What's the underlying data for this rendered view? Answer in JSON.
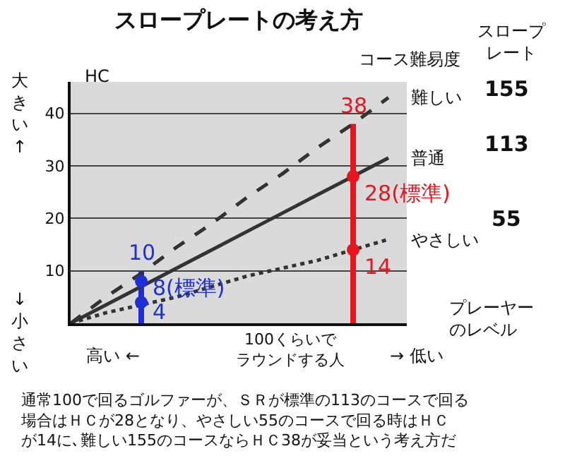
{
  "chart_data": {
    "type": "line",
    "title": "スロープレートの考え方",
    "ylabel": "HC",
    "xlabel": "プレーヤーのレベル",
    "categories": [
      null,
      null,
      null,
      null,
      null,
      null,
      null,
      null,
      null,
      null
    ],
    "ylim": [
      0,
      46
    ],
    "yticks": [
      10,
      20,
      30,
      40
    ],
    "grid": "y",
    "legend": false,
    "marker": "none",
    "series": [
      {
        "name": "難しい",
        "color": "#333333",
        "line_style": "dashed",
        "values": [
          0,
          5,
          9.5,
          14.5,
          19,
          24,
          28.5,
          33.5,
          38,
          43
        ]
      },
      {
        "name": "普通",
        "color": "#333333",
        "line_style": "solid",
        "values": [
          0,
          3.5,
          7,
          10.5,
          14,
          17.5,
          21,
          24.5,
          28,
          31.5
        ]
      },
      {
        "name": "やさしい",
        "color": "#333333",
        "line_style": "dotted",
        "values": [
          0,
          2,
          3.5,
          5,
          7,
          9,
          10.5,
          12,
          14,
          16
        ]
      },
      {
        "type": "bar",
        "color": "#e8141e",
        "values": [
          null,
          null,
          null,
          null,
          null,
          null,
          null,
          null,
          38,
          null
        ],
        "value_labels": [
          null,
          null,
          null,
          null,
          null,
          null,
          null,
          null,
          "38",
          null
        ]
      },
      {
        "type": "bar",
        "color": "#1e2fd6",
        "values": [
          null,
          null,
          10,
          null,
          null,
          null,
          null,
          null,
          null,
          null
        ],
        "value_labels": [
          null,
          null,
          "10",
          null,
          null,
          null,
          null,
          null,
          null,
          null
        ]
      },
      {
        "type": "scatter",
        "marker": "circle",
        "color": "#e8141e",
        "values": [
          null,
          null,
          null,
          null,
          null,
          null,
          null,
          null,
          28,
          null
        ],
        "value_labels": [
          null,
          null,
          null,
          null,
          null,
          null,
          null,
          null,
          "28(標準)",
          null
        ]
      },
      {
        "type": "scatter",
        "marker": "circle",
        "color": "#e8141e",
        "values": [
          null,
          null,
          null,
          null,
          null,
          null,
          null,
          null,
          14,
          null
        ],
        "value_labels": [
          null,
          null,
          null,
          null,
          null,
          null,
          null,
          null,
          "14",
          null
        ]
      },
      {
        "type": "scatter",
        "marker": "circle",
        "color": "#1e2fd6",
        "values": [
          null,
          null,
          8,
          null,
          null,
          null,
          null,
          null,
          null,
          null
        ],
        "value_labels": [
          null,
          null,
          "8(標準)",
          null,
          null,
          null,
          null,
          null,
          null,
          null
        ]
      },
      {
        "type": "scatter",
        "marker": "circle",
        "color": "#1e2fd6",
        "values": [
          null,
          null,
          4,
          null,
          null,
          null,
          null,
          null,
          null,
          null
        ],
        "value_labels": [
          null,
          null,
          "4",
          null,
          null,
          null,
          null,
          null,
          null,
          null
        ]
      }
    ],
    "annotations": [
      "コース難易度",
      "スロープレート",
      "155",
      "113",
      "55",
      "大きい↑",
      "↓小さい",
      "高い ←",
      "→ 低い",
      "100くらいでラウンドする人",
      "通常100で回るゴルファーが、ＳＲが標準の113のコースで回る場合はＨＣが28となり、やさしい55のコースで回る時はＨＣが14に､難しい155のコースならＨＣ38が妥当という考え方だ"
    ]
  }
}
